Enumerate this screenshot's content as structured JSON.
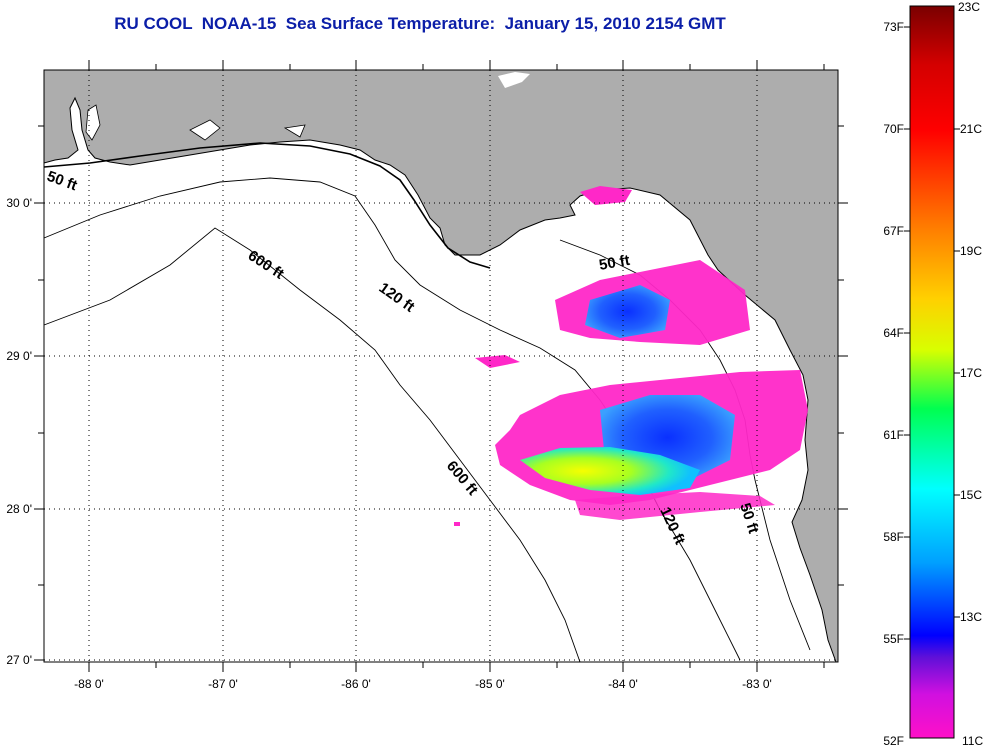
{
  "title": "RU COOL  NOAA-15  Sea Surface Temperature:  January 15, 2010 2154 GMT",
  "map": {
    "lon_ticks": [
      "-88 0'",
      "-87 0'",
      "-86 0'",
      "-85 0'",
      "-84 0'",
      "-83 0'"
    ],
    "lat_ticks": [
      "30 0'",
      "29 0'",
      "28 0'",
      "27 0'"
    ],
    "contour_labels": [
      "50 ft",
      "600 ft",
      "120 ft",
      "50 ft",
      "600 ft",
      "120 ft",
      "50 ft"
    ],
    "colors": {
      "land": "#adadad",
      "ocean": "#ffffff",
      "coastline": "#000000",
      "gridline": "#000000"
    }
  },
  "colorbar": {
    "f_labels": [
      "73F",
      "70F",
      "67F",
      "64F",
      "61F",
      "58F",
      "55F",
      "52F"
    ],
    "c_labels": [
      "23C",
      "21C",
      "19C",
      "17C",
      "15C",
      "13C",
      "11C"
    ],
    "gradient_stops": [
      "#7a0000",
      "#d40000",
      "#ff0000",
      "#ff7a00",
      "#ffd000",
      "#d8ff00",
      "#00ff50",
      "#00ffff",
      "#00a0ff",
      "#0000ff",
      "#6010d8",
      "#d010e0",
      "#ff10c8"
    ]
  }
}
